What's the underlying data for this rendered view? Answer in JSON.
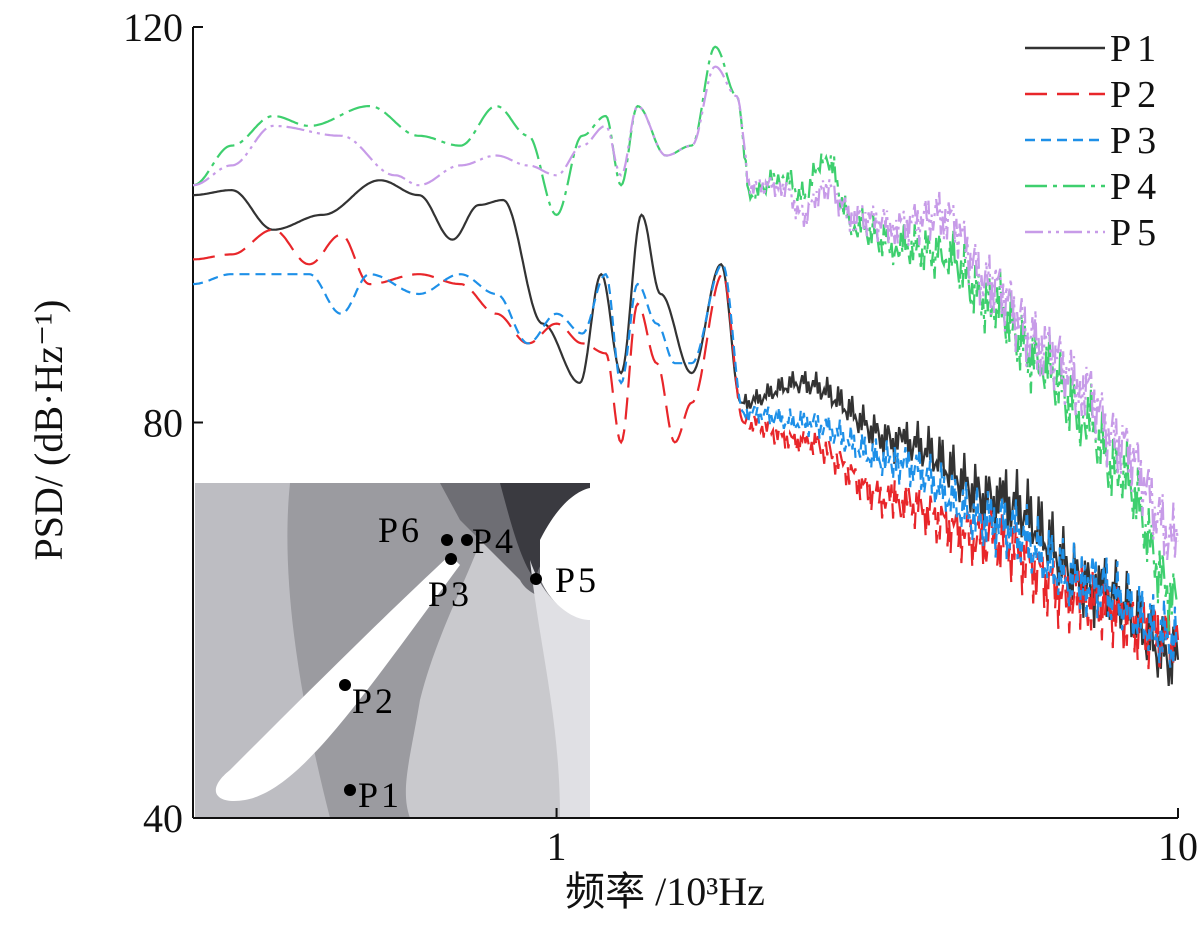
{
  "chart_data": {
    "type": "line",
    "xlabel": "频率 /10³Hz",
    "ylabel": "PSD/ (dB·Hz⁻¹)",
    "xscale": "log",
    "xlim": [
      0.26,
      10
    ],
    "ylim": [
      40,
      120
    ],
    "xticks": [
      {
        "v": 1,
        "label": "1"
      },
      {
        "v": 10,
        "label": "10"
      }
    ],
    "yticks": [
      {
        "v": 40,
        "label": "40"
      },
      {
        "v": 80,
        "label": "80"
      },
      {
        "v": 120,
        "label": "120"
      }
    ],
    "grid": false,
    "legend": "top-right",
    "series": [
      {
        "name": "P1",
        "color": "#333333",
        "dash": "none",
        "x": [
          0.26,
          0.3,
          0.35,
          0.42,
          0.52,
          0.6,
          0.68,
          0.75,
          0.82,
          0.95,
          1.09,
          1.18,
          1.27,
          1.37,
          1.47,
          1.65,
          1.84,
          1.98,
          2.47,
          3.6,
          5.2,
          7.5,
          10
        ],
        "y": [
          103,
          103.5,
          99.5,
          101,
          104.5,
          103,
          98.5,
          102,
          102.5,
          90,
          84,
          95,
          85,
          101,
          93,
          85,
          96,
          82,
          84,
          78,
          72,
          63,
          56
        ]
      },
      {
        "name": "P2",
        "color": "#e8262a",
        "dash": "22 10",
        "x": [
          0.26,
          0.3,
          0.35,
          0.4,
          0.45,
          0.5,
          0.6,
          0.7,
          0.8,
          0.9,
          1.0,
          1.1,
          1.2,
          1.27,
          1.35,
          1.45,
          1.55,
          1.65,
          1.85,
          2.0,
          2.5,
          3.5,
          5,
          7,
          10
        ],
        "y": [
          96.5,
          97,
          99.5,
          96,
          99,
          94,
          95,
          94,
          91,
          88,
          90,
          88,
          87,
          78,
          92,
          86,
          78,
          82,
          95,
          80,
          78,
          72,
          68,
          62,
          58
        ]
      },
      {
        "name": "P3",
        "color": "#1e90e8",
        "dash": "10 6",
        "x": [
          0.26,
          0.3,
          0.4,
          0.45,
          0.5,
          0.6,
          0.7,
          0.8,
          0.9,
          1.0,
          1.1,
          1.2,
          1.27,
          1.35,
          1.45,
          1.55,
          1.65,
          1.85,
          2.0,
          2.5,
          3.5,
          5,
          7,
          10
        ],
        "y": [
          94,
          95,
          95,
          91,
          95,
          93,
          95,
          93,
          88,
          91,
          89,
          95,
          84,
          94,
          90,
          86,
          86,
          96,
          81,
          80,
          76,
          70,
          64,
          58
        ]
      },
      {
        "name": "P4",
        "color": "#3ecf6e",
        "dash": "22 6 4 6",
        "x": [
          0.26,
          0.3,
          0.35,
          0.4,
          0.5,
          0.6,
          0.7,
          0.8,
          0.9,
          1.0,
          1.1,
          1.2,
          1.27,
          1.35,
          1.5,
          1.65,
          1.8,
          1.95,
          2.05,
          2.3,
          2.5,
          2.7,
          3.0,
          3.5,
          4.2,
          5,
          6,
          7,
          8,
          10
        ],
        "y": [
          104,
          108,
          111,
          110,
          112,
          109,
          108,
          112,
          109,
          101,
          109,
          111,
          104,
          112,
          107,
          108,
          118,
          113,
          103,
          105,
          103,
          107,
          100,
          98,
          97,
          92,
          86,
          81,
          75,
          62
        ]
      },
      {
        "name": "P5",
        "color": "#c79be8",
        "dash": "18 5 3 5 3 5",
        "x": [
          0.26,
          0.3,
          0.35,
          0.45,
          0.55,
          0.6,
          0.7,
          0.8,
          0.9,
          1.0,
          1.1,
          1.2,
          1.27,
          1.35,
          1.5,
          1.65,
          1.8,
          1.95,
          2.05,
          2.3,
          2.5,
          2.7,
          3.0,
          3.5,
          4.2,
          5,
          6,
          7,
          8,
          10
        ],
        "y": [
          104,
          106,
          110,
          109,
          105,
          104,
          106,
          107,
          106,
          105,
          108,
          110,
          105,
          112,
          107,
          108,
          116,
          113,
          104,
          104,
          101,
          104,
          101,
          100,
          101,
          94,
          88,
          84,
          78,
          68
        ]
      }
    ]
  },
  "inset": {
    "points": [
      "P1",
      "P2",
      "P3",
      "P4",
      "P5",
      "P6"
    ]
  }
}
